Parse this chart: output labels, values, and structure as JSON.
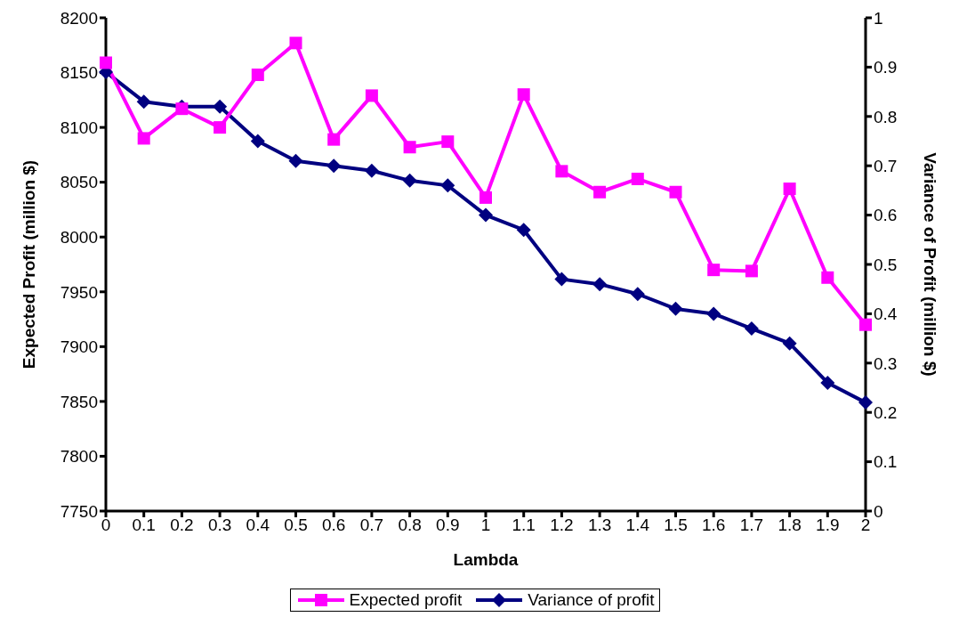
{
  "chart_data": {
    "type": "line",
    "xlabel": "Lambda",
    "ylabel": "Expected Profit (million $)",
    "y2label": "Variance of Profit (million $)",
    "categories": [
      "0",
      "0.1",
      "0.2",
      "0.3",
      "0.4",
      "0.5",
      "0.6",
      "0.7",
      "0.8",
      "0.9",
      "1",
      "1.1",
      "1.2",
      "1.3",
      "1.4",
      "1.5",
      "1.6",
      "1.7",
      "1.8",
      "1.9",
      "2"
    ],
    "series": [
      {
        "name": "Expected profit",
        "color": "#ff00ff",
        "marker": "square",
        "values": [
          8159,
          8090,
          8117,
          8100,
          8148,
          8177,
          8089,
          8129,
          8082,
          8087,
          8036,
          8130,
          8060,
          8041,
          8053,
          8041,
          7970,
          7969,
          8044,
          7963,
          7920
        ]
      },
      {
        "name": "Variance of profit",
        "color": "#000080",
        "marker": "diamond",
        "axis": "y2",
        "values": [
          0.89,
          0.83,
          0.82,
          0.82,
          0.75,
          0.71,
          0.7,
          0.69,
          0.67,
          0.66,
          0.6,
          0.57,
          0.47,
          0.46,
          0.44,
          0.41,
          0.4,
          0.37,
          0.34,
          0.26,
          0.22
        ]
      }
    ],
    "ylim": [
      7750,
      8200
    ],
    "yticks": [
      7750,
      7800,
      7850,
      7900,
      7950,
      8000,
      8050,
      8100,
      8150,
      8200
    ],
    "y2lim": [
      0,
      1
    ],
    "y2ticks": [
      0,
      0.1,
      0.2,
      0.3,
      0.4,
      0.5,
      0.6,
      0.7,
      0.8,
      0.9,
      1
    ],
    "grid": false,
    "legend": "bottom",
    "line_style": "solid"
  }
}
